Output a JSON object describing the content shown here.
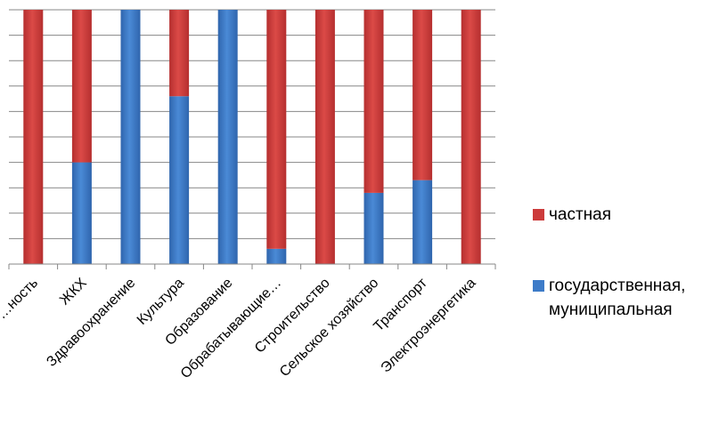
{
  "chart_data": {
    "type": "bar",
    "stacked": true,
    "percent_stacked": true,
    "categories": [
      "…ность",
      "ЖКХ",
      "Здравоохранение",
      "Культура",
      "Образование",
      "Обрабатывающие…",
      "Строительство",
      "Сельское хозяйство",
      "Транспорт",
      "Электроэнергетика"
    ],
    "series": [
      {
        "name": "государственная, муниципальная",
        "color": "#3d7bc8",
        "values": [
          0,
          40,
          100,
          66,
          100,
          6,
          0,
          28,
          33,
          0
        ]
      },
      {
        "name": "частная",
        "color": "#cc3b3b",
        "values": [
          100,
          60,
          0,
          34,
          0,
          94,
          100,
          72,
          67,
          100
        ]
      }
    ],
    "ylim": [
      0,
      100
    ],
    "grid": true,
    "legend_position": "right"
  }
}
